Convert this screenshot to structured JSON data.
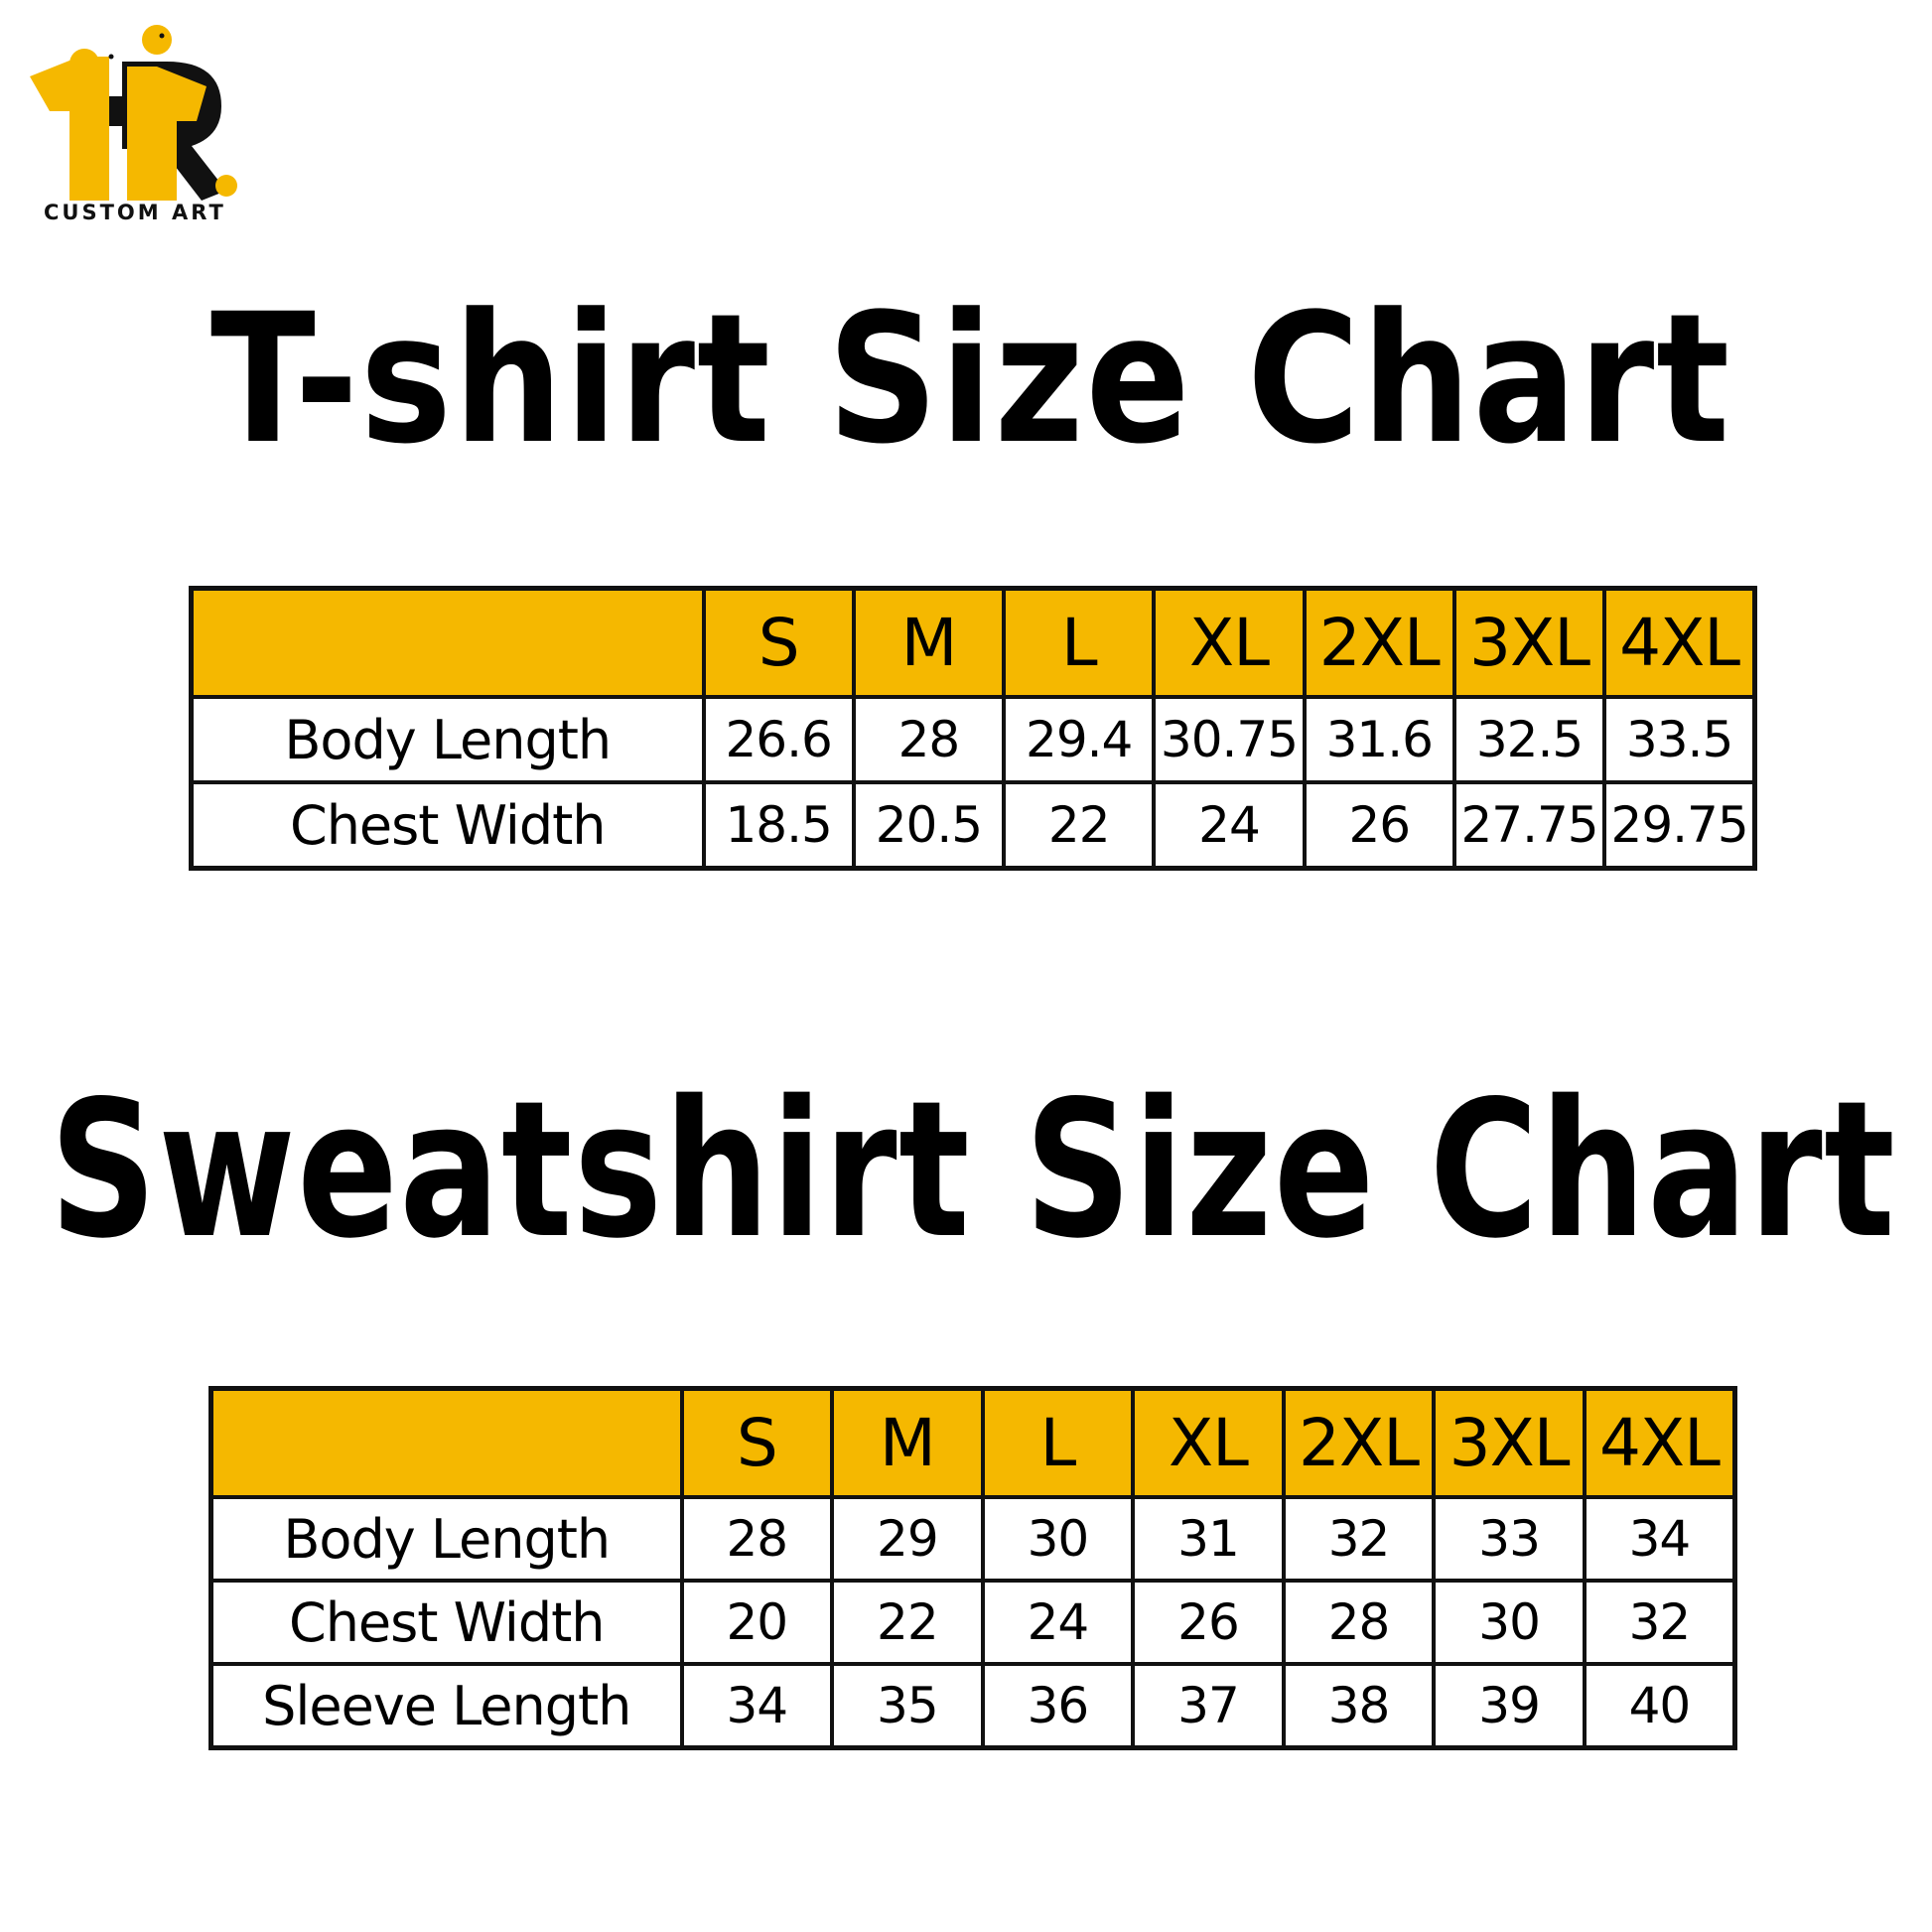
{
  "brand": {
    "logo_text": "CUSTOM ART",
    "colors": {
      "accent": "#f5b800",
      "ink": "#000000"
    }
  },
  "tshirt": {
    "title": "T-shirt Size Chart",
    "sizes": [
      "S",
      "M",
      "L",
      "XL",
      "2XL",
      "3XL",
      "4XL"
    ],
    "rows": [
      {
        "label": "Body Length",
        "values": [
          "26.6",
          "28",
          "29.4",
          "30.75",
          "31.6",
          "32.5",
          "33.5"
        ]
      },
      {
        "label": "Chest Width",
        "values": [
          "18.5",
          "20.5",
          "22",
          "24",
          "26",
          "27.75",
          "29.75"
        ]
      }
    ]
  },
  "sweatshirt": {
    "title": "Sweatshirt Size Chart",
    "sizes": [
      "S",
      "M",
      "L",
      "XL",
      "2XL",
      "3XL",
      "4XL"
    ],
    "rows": [
      {
        "label": "Body Length",
        "values": [
          "28",
          "29",
          "30",
          "31",
          "32",
          "33",
          "34"
        ]
      },
      {
        "label": "Chest Width",
        "values": [
          "20",
          "22",
          "24",
          "26",
          "28",
          "30",
          "32"
        ]
      },
      {
        "label": "Sleeve Length",
        "values": [
          "34",
          "35",
          "36",
          "37",
          "38",
          "39",
          "40"
        ]
      }
    ]
  }
}
